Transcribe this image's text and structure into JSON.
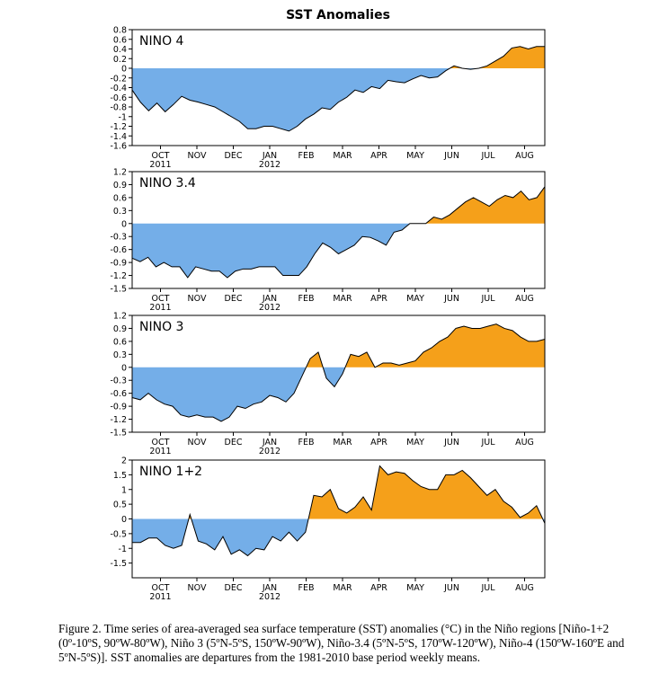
{
  "figure": {
    "title": "SST Anomalies",
    "caption": "Figure 2. Time series of area-averaged sea surface temperature (SST) anomalies (°C) in the Niño regions [Niño-1+2 (0º-10ºS, 90ºW-80ºW), Niño 3 (5ºN-5ºS, 150ºW-90ºW), Niño-3.4 (5ºN-5ºS, 170ºW-120ºW), Niño-4 (150ºW-160ºE and 5ºN-5ºS)].  SST anomalies are departures from the 1981-2010 base period weekly means."
  },
  "colors": {
    "positive": "#f5a01a",
    "negative": "#74aee8",
    "line": "#000000",
    "background": "#ffffff"
  },
  "chart_data": [
    {
      "type": "area",
      "title": "NINO 4",
      "x_unit": "weeks",
      "x_range": [
        0,
        51
      ],
      "ylim": [
        -1.6,
        0.8
      ],
      "y_ticks": [
        "0.8",
        "0.6",
        "0.4",
        "0.2",
        "0",
        "-0.2",
        "-0.4",
        "-0.6",
        "-0.8",
        "-1",
        "-1.2",
        "-1.4",
        "-1.6"
      ],
      "months": [
        {
          "label": "OCT",
          "year": "2011",
          "x": 3.5
        },
        {
          "label": "NOV",
          "x": 8
        },
        {
          "label": "DEC",
          "x": 12.5
        },
        {
          "label": "JAN",
          "year": "2012",
          "x": 17
        },
        {
          "label": "FEB",
          "x": 21.5
        },
        {
          "label": "MAR",
          "x": 26
        },
        {
          "label": "APR",
          "x": 30.5
        },
        {
          "label": "MAY",
          "x": 35
        },
        {
          "label": "JUN",
          "x": 39.5
        },
        {
          "label": "JUL",
          "x": 44
        },
        {
          "label": "AUG",
          "x": 48.5
        }
      ],
      "values": [
        -0.45,
        -0.7,
        -0.88,
        -0.72,
        -0.9,
        -0.75,
        -0.58,
        -0.66,
        -0.7,
        -0.75,
        -0.8,
        -0.9,
        -1.0,
        -1.1,
        -1.25,
        -1.25,
        -1.2,
        -1.2,
        -1.25,
        -1.3,
        -1.2,
        -1.05,
        -0.95,
        -0.82,
        -0.85,
        -0.7,
        -0.6,
        -0.45,
        -0.5,
        -0.38,
        -0.42,
        -0.25,
        -0.28,
        -0.3,
        -0.22,
        -0.15,
        -0.2,
        -0.18,
        -0.05,
        0.05,
        0.0,
        -0.02,
        0.0,
        0.05,
        0.15,
        0.25,
        0.42,
        0.45,
        0.4,
        0.45,
        0.45
      ]
    },
    {
      "type": "area",
      "title": "NINO 3.4",
      "x_unit": "weeks",
      "x_range": [
        0,
        51
      ],
      "ylim": [
        -1.5,
        1.2
      ],
      "y_ticks": [
        "1.2",
        "0.9",
        "0.6",
        "0.3",
        "0",
        "-0.3",
        "-0.6",
        "-0.9",
        "-1.2",
        "-1.5"
      ],
      "months": [
        {
          "label": "OCT",
          "year": "2011",
          "x": 3.5
        },
        {
          "label": "NOV",
          "x": 8
        },
        {
          "label": "DEC",
          "x": 12.5
        },
        {
          "label": "JAN",
          "year": "2012",
          "x": 17
        },
        {
          "label": "FEB",
          "x": 21.5
        },
        {
          "label": "MAR",
          "x": 26
        },
        {
          "label": "APR",
          "x": 30.5
        },
        {
          "label": "MAY",
          "x": 35
        },
        {
          "label": "JUN",
          "x": 39.5
        },
        {
          "label": "JUL",
          "x": 44
        },
        {
          "label": "AUG",
          "x": 48.5
        }
      ],
      "values": [
        -0.8,
        -0.88,
        -0.78,
        -1.0,
        -0.9,
        -1.0,
        -1.0,
        -1.25,
        -1.0,
        -1.05,
        -1.1,
        -1.1,
        -1.25,
        -1.1,
        -1.05,
        -1.05,
        -1.0,
        -1.0,
        -1.0,
        -1.2,
        -1.2,
        -1.2,
        -1.0,
        -0.7,
        -0.45,
        -0.55,
        -0.7,
        -0.6,
        -0.5,
        -0.3,
        -0.32,
        -0.4,
        -0.5,
        -0.2,
        -0.15,
        0.0,
        0.0,
        0.0,
        0.15,
        0.1,
        0.2,
        0.35,
        0.5,
        0.6,
        0.5,
        0.4,
        0.55,
        0.65,
        0.6,
        0.75,
        0.55,
        0.6,
        0.85
      ]
    },
    {
      "type": "area",
      "title": "NINO 3",
      "x_unit": "weeks",
      "x_range": [
        0,
        51
      ],
      "ylim": [
        -1.5,
        1.2
      ],
      "y_ticks": [
        "1.2",
        "0.9",
        "0.6",
        "0.3",
        "0",
        "-0.3",
        "-0.6",
        "-0.9",
        "-1.2",
        "-1.5"
      ],
      "months": [
        {
          "label": "OCT",
          "year": "2011",
          "x": 3.5
        },
        {
          "label": "NOV",
          "x": 8
        },
        {
          "label": "DEC",
          "x": 12.5
        },
        {
          "label": "JAN",
          "year": "2012",
          "x": 17
        },
        {
          "label": "FEB",
          "x": 21.5
        },
        {
          "label": "MAR",
          "x": 26
        },
        {
          "label": "APR",
          "x": 30.5
        },
        {
          "label": "MAY",
          "x": 35
        },
        {
          "label": "JUN",
          "x": 39.5
        },
        {
          "label": "JUL",
          "x": 44
        },
        {
          "label": "AUG",
          "x": 48.5
        }
      ],
      "values": [
        -0.7,
        -0.75,
        -0.6,
        -0.75,
        -0.85,
        -0.9,
        -1.1,
        -1.15,
        -1.1,
        -1.15,
        -1.15,
        -1.25,
        -1.15,
        -0.9,
        -0.95,
        -0.85,
        -0.8,
        -0.65,
        -0.7,
        -0.8,
        -0.6,
        -0.2,
        0.2,
        0.35,
        -0.25,
        -0.45,
        -0.15,
        0.3,
        0.25,
        0.35,
        0.0,
        0.1,
        0.1,
        0.05,
        0.1,
        0.15,
        0.35,
        0.45,
        0.6,
        0.7,
        0.9,
        0.95,
        0.9,
        0.9,
        0.95,
        1.0,
        0.9,
        0.85,
        0.7,
        0.6,
        0.6,
        0.65
      ]
    },
    {
      "type": "area",
      "title": "NINO 1+2",
      "x_unit": "weeks",
      "x_range": [
        0,
        51
      ],
      "ylim": [
        -2,
        2
      ],
      "y_ticks": [
        "2",
        "1.5",
        "1",
        "0.5",
        "0",
        "-0.5",
        "-1",
        "-1.5"
      ],
      "months": [
        {
          "label": "OCT",
          "year": "2011",
          "x": 3.5
        },
        {
          "label": "NOV",
          "x": 8
        },
        {
          "label": "DEC",
          "x": 12.5
        },
        {
          "label": "JAN",
          "year": "2012",
          "x": 17
        },
        {
          "label": "FEB",
          "x": 21.5
        },
        {
          "label": "MAR",
          "x": 26
        },
        {
          "label": "APR",
          "x": 30.5
        },
        {
          "label": "MAY",
          "x": 35
        },
        {
          "label": "JUN",
          "x": 39.5
        },
        {
          "label": "JUL",
          "x": 44
        },
        {
          "label": "AUG",
          "x": 48.5
        }
      ],
      "values": [
        -0.8,
        -0.8,
        -0.65,
        -0.65,
        -0.9,
        -1.0,
        -0.9,
        0.15,
        -0.75,
        -0.85,
        -1.05,
        -0.6,
        -1.2,
        -1.05,
        -1.25,
        -1.0,
        -1.05,
        -0.6,
        -0.75,
        -0.45,
        -0.75,
        -0.45,
        0.8,
        0.75,
        1.0,
        0.35,
        0.2,
        0.4,
        0.75,
        0.3,
        1.8,
        1.5,
        1.6,
        1.55,
        1.3,
        1.1,
        1.0,
        1.0,
        1.5,
        1.5,
        1.65,
        1.4,
        1.1,
        0.8,
        1.0,
        0.6,
        0.4,
        0.05,
        0.2,
        0.45,
        -0.15
      ]
    }
  ]
}
